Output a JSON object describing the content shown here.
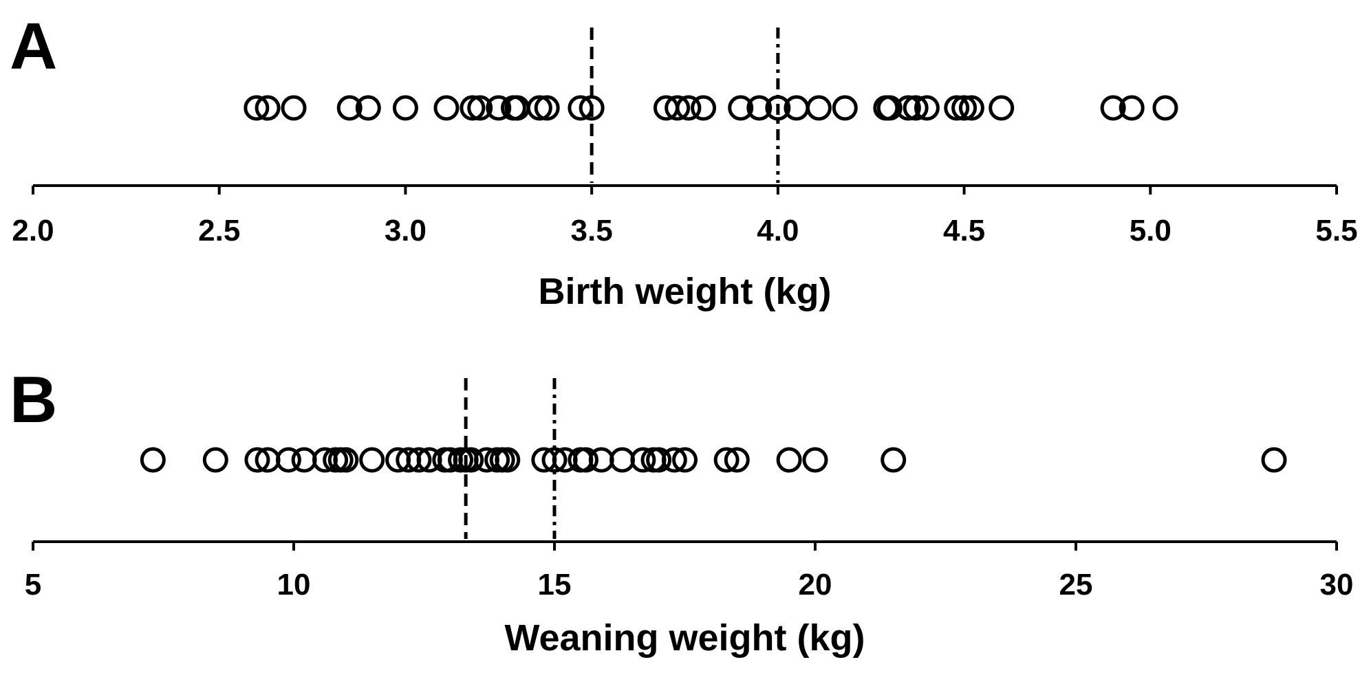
{
  "chart_data": [
    {
      "type": "scatter",
      "panel_label": "A",
      "xlabel": "Birth weight (kg)",
      "xlim": [
        2.0,
        5.5
      ],
      "ticks": [
        2.0,
        2.5,
        3.0,
        3.5,
        4.0,
        4.5,
        5.0,
        5.5
      ],
      "tick_labels": [
        "2.0",
        "2.5",
        "3.0",
        "3.5",
        "4.0",
        "4.5",
        "5.0",
        "5.5"
      ],
      "values": [
        2.6,
        2.63,
        2.7,
        2.85,
        2.9,
        3.0,
        3.11,
        3.18,
        3.2,
        3.25,
        3.29,
        3.3,
        3.36,
        3.38,
        3.47,
        3.5,
        3.7,
        3.73,
        3.76,
        3.8,
        3.9,
        3.95,
        4.0,
        4.05,
        4.11,
        4.18,
        4.29,
        4.3,
        4.35,
        4.37,
        4.4,
        4.48,
        4.5,
        4.52,
        4.6,
        4.9,
        4.95,
        5.04
      ],
      "reference_lines": [
        {
          "x": 3.5,
          "style": "dashed"
        },
        {
          "x": 4.0,
          "style": "dash-dot"
        }
      ],
      "grid": false
    },
    {
      "type": "scatter",
      "panel_label": "B",
      "xlabel": "Weaning weight (kg)",
      "xlim": [
        5,
        30
      ],
      "ticks": [
        5,
        10,
        15,
        20,
        25,
        30
      ],
      "tick_labels": [
        "5",
        "10",
        "15",
        "20",
        "25",
        "30"
      ],
      "values": [
        7.3,
        8.5,
        9.3,
        9.5,
        9.9,
        10.2,
        10.6,
        10.8,
        10.9,
        11.0,
        11.5,
        12.0,
        12.2,
        12.4,
        12.6,
        12.9,
        13.0,
        13.2,
        13.3,
        13.4,
        13.7,
        13.9,
        14.0,
        14.1,
        14.8,
        15.0,
        15.2,
        15.5,
        15.6,
        15.9,
        16.3,
        16.7,
        16.9,
        17.0,
        17.3,
        17.5,
        18.3,
        18.5,
        19.5,
        20.0,
        21.5,
        28.8
      ],
      "reference_lines": [
        {
          "x": 13.3,
          "style": "dashed"
        },
        {
          "x": 15.0,
          "style": "dash-dot"
        }
      ],
      "grid": false
    }
  ]
}
